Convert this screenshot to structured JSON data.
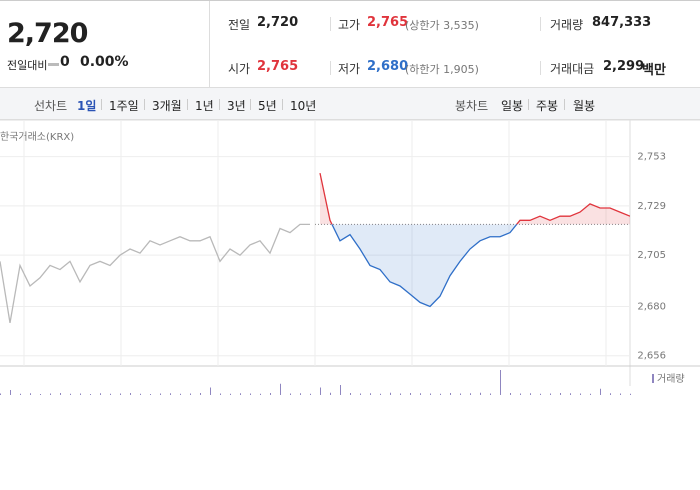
{
  "header": {
    "price": "2,720",
    "change_label": "전일대비",
    "change": "0",
    "change_rate": "0.00%",
    "stats": [
      {
        "label": "전일",
        "value": "2,720"
      },
      {
        "label": "고가",
        "value": "2,765",
        "note": "(상한가 3,535)"
      },
      {
        "label": "거래량",
        "value": "847,333"
      },
      {
        "label": "시가",
        "value": "2,765"
      },
      {
        "label": "저가",
        "value": "2,680",
        "note": "(하한가 1,905)"
      },
      {
        "label": "거래대금",
        "value": "2,299",
        "unit": "백만"
      }
    ]
  },
  "tabs": {
    "line_label": "선차트",
    "line": [
      "1일",
      "1주일",
      "3개월",
      "1년",
      "3년",
      "5년",
      "10년"
    ],
    "candle_label": "봉차트",
    "candle": [
      "일봉",
      "주봉",
      "월봉"
    ]
  },
  "chart_data": {
    "type": "line",
    "source": "한국거래소(KRX)",
    "ylim": [
      2651,
      2766
    ],
    "yticks": [
      {
        "value": 2753,
        "label": "2,753"
      },
      {
        "value": 2729,
        "label": "2,729"
      },
      {
        "value": 2705,
        "label": "2,705"
      },
      {
        "value": 2680,
        "label": "2,680"
      },
      {
        "value": 2656,
        "label": "2,656"
      }
    ],
    "grid": true,
    "reference": 2720,
    "series": [
      {
        "color": "#b9b9b9",
        "values": [
          2702,
          2672,
          2700,
          2690,
          2694,
          2700,
          2698,
          2702,
          2692,
          2700,
          2702,
          2700,
          2705,
          2708,
          2706,
          2712,
          2710,
          2712,
          2714,
          2712,
          2712,
          2714,
          2702,
          2708,
          2705,
          2710,
          2712,
          2706,
          2718,
          2716,
          2720,
          2720,
          null,
          null,
          null,
          null,
          null,
          null,
          null,
          null,
          null,
          null,
          null,
          null,
          null,
          null,
          null,
          null,
          null,
          null,
          null,
          null,
          null,
          null,
          null,
          null,
          null,
          null,
          null,
          null,
          null,
          null,
          null,
          null
        ]
      },
      {
        "color": "#e0343c",
        "color_below": "#2f6fc8",
        "values": [
          null,
          null,
          null,
          null,
          null,
          null,
          null,
          null,
          null,
          null,
          null,
          null,
          null,
          null,
          null,
          null,
          null,
          null,
          null,
          null,
          null,
          null,
          null,
          null,
          null,
          null,
          null,
          null,
          null,
          null,
          null,
          null,
          2745,
          2722,
          2712,
          2715,
          2708,
          2700,
          2698,
          2692,
          2690,
          2686,
          2682,
          2680,
          2685,
          2695,
          2702,
          2708,
          2712,
          2714,
          2714,
          2716,
          2722,
          2722,
          2724,
          2722,
          2724,
          2724,
          2726,
          2730,
          2728,
          2728,
          2726,
          2724
        ]
      }
    ],
    "volume": {
      "name": "거래량",
      "color": "#8f86c0",
      "ylim": [
        0,
        100
      ],
      "values": [
        6,
        20,
        5,
        7,
        4,
        6,
        8,
        5,
        6,
        4,
        7,
        5,
        6,
        8,
        5,
        4,
        6,
        7,
        5,
        6,
        8,
        30,
        6,
        5,
        7,
        6,
        5,
        8,
        45,
        6,
        7,
        5,
        30,
        9,
        40,
        8,
        6,
        7,
        5,
        9,
        6,
        8,
        7,
        6,
        5,
        8,
        6,
        7,
        9,
        6,
        100,
        8,
        6,
        7,
        5,
        6,
        8,
        7,
        6,
        5,
        25,
        7,
        6,
        5
      ]
    }
  }
}
